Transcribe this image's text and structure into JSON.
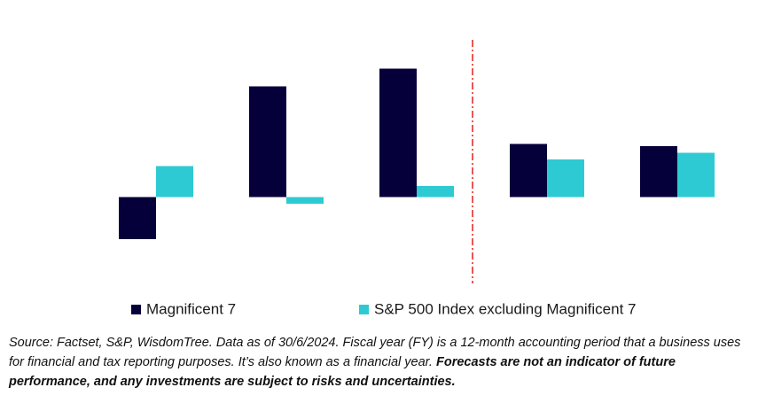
{
  "chart_data": {
    "type": "bar",
    "categories": [
      null,
      null,
      null,
      null,
      null
    ],
    "series": [
      {
        "name": "Magnificent 7",
        "color": "#05003a",
        "values": [
          -19,
          50,
          58,
          24,
          23
        ]
      },
      {
        "name": "S&P 500 Index excluding Magnificent 7",
        "color": "#2ecad3",
        "values": [
          14,
          -3,
          5,
          17,
          20
        ]
      }
    ],
    "ylim": [
      -39,
      73
    ]
  },
  "footnote": {
    "text": "Source: Factset, S&P, WisdomTree. Data as of 30/6/2024. Fiscal year (FY) is a 12-month accounting period that a business uses for financial and tax reporting purposes. It’s also known as a financial year.",
    "bold": "Forecasts are not an indicator of future performance, and any investments are subject to risks and uncertainties."
  }
}
